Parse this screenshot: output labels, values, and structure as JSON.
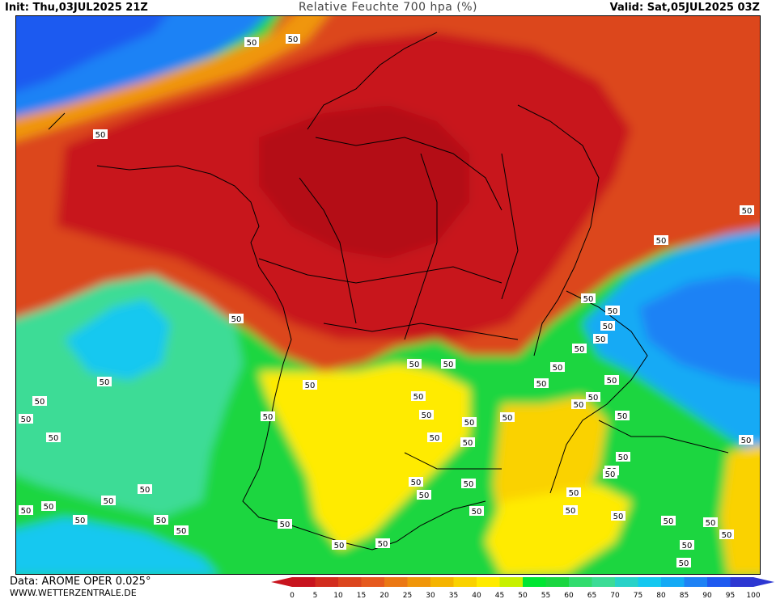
{
  "header": {
    "init": "Init: Thu,03JUL2025 21Z",
    "title": "Relative Feuchte 700 hpa (%)",
    "valid": "Valid: Sat,05JUL2025 03Z"
  },
  "footer": {
    "source": "Data: AROME OPER 0.025°",
    "website": "WWW.WETTERZENTRALE.DE"
  },
  "contour_label": "50",
  "legend": {
    "ticks": [
      "0",
      "5",
      "10",
      "15",
      "20",
      "25",
      "30",
      "35",
      "40",
      "45",
      "50",
      "55",
      "60",
      "65",
      "70",
      "75",
      "80",
      "85",
      "90",
      "95",
      "100"
    ],
    "colors": [
      "#c8141e",
      "#d22d1e",
      "#dc461e",
      "#e65a1e",
      "#eb7814",
      "#f0960a",
      "#f5b400",
      "#fad200",
      "#ffeb00",
      "#c8f000",
      "#00e632",
      "#1ad640",
      "#32dc6e",
      "#3cdc96",
      "#28d2c8",
      "#14c8f0",
      "#14aaf5",
      "#1e82f5",
      "#1e5af0",
      "#2d37d2"
    ]
  },
  "colors": {
    "very_dry": "#c8141e",
    "dry": "#dc461e",
    "moist": "#1ad640",
    "humid": "#14aaf5"
  }
}
